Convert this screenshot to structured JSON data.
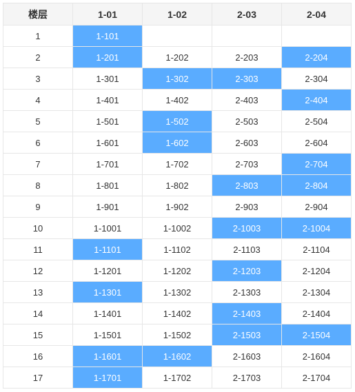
{
  "colors": {
    "highlight": "#5aacff",
    "header_bg": "#f5f5f5",
    "border": "#e6e6e6"
  },
  "table": {
    "headers": [
      "楼层",
      "1-01",
      "1-02",
      "2-03",
      "2-04"
    ],
    "rows": [
      {
        "floor": "1",
        "units": [
          {
            "label": "1-101",
            "hl": true
          },
          {
            "label": "",
            "hl": false
          },
          {
            "label": "",
            "hl": false
          },
          {
            "label": "",
            "hl": false
          }
        ]
      },
      {
        "floor": "2",
        "units": [
          {
            "label": "1-201",
            "hl": true
          },
          {
            "label": "1-202",
            "hl": false
          },
          {
            "label": "2-203",
            "hl": false
          },
          {
            "label": "2-204",
            "hl": true
          }
        ]
      },
      {
        "floor": "3",
        "units": [
          {
            "label": "1-301",
            "hl": false
          },
          {
            "label": "1-302",
            "hl": true
          },
          {
            "label": "2-303",
            "hl": true
          },
          {
            "label": "2-304",
            "hl": false
          }
        ]
      },
      {
        "floor": "4",
        "units": [
          {
            "label": "1-401",
            "hl": false
          },
          {
            "label": "1-402",
            "hl": false
          },
          {
            "label": "2-403",
            "hl": false
          },
          {
            "label": "2-404",
            "hl": true
          }
        ]
      },
      {
        "floor": "5",
        "units": [
          {
            "label": "1-501",
            "hl": false
          },
          {
            "label": "1-502",
            "hl": true
          },
          {
            "label": "2-503",
            "hl": false
          },
          {
            "label": "2-504",
            "hl": false
          }
        ]
      },
      {
        "floor": "6",
        "units": [
          {
            "label": "1-601",
            "hl": false
          },
          {
            "label": "1-602",
            "hl": true
          },
          {
            "label": "2-603",
            "hl": false
          },
          {
            "label": "2-604",
            "hl": false
          }
        ]
      },
      {
        "floor": "7",
        "units": [
          {
            "label": "1-701",
            "hl": false
          },
          {
            "label": "1-702",
            "hl": false
          },
          {
            "label": "2-703",
            "hl": false
          },
          {
            "label": "2-704",
            "hl": true
          }
        ]
      },
      {
        "floor": "8",
        "units": [
          {
            "label": "1-801",
            "hl": false
          },
          {
            "label": "1-802",
            "hl": false
          },
          {
            "label": "2-803",
            "hl": true
          },
          {
            "label": "2-804",
            "hl": true
          }
        ]
      },
      {
        "floor": "9",
        "units": [
          {
            "label": "1-901",
            "hl": false
          },
          {
            "label": "1-902",
            "hl": false
          },
          {
            "label": "2-903",
            "hl": false
          },
          {
            "label": "2-904",
            "hl": false
          }
        ]
      },
      {
        "floor": "10",
        "units": [
          {
            "label": "1-1001",
            "hl": false
          },
          {
            "label": "1-1002",
            "hl": false
          },
          {
            "label": "2-1003",
            "hl": true
          },
          {
            "label": "2-1004",
            "hl": true
          }
        ]
      },
      {
        "floor": "11",
        "units": [
          {
            "label": "1-1101",
            "hl": true
          },
          {
            "label": "1-1102",
            "hl": false
          },
          {
            "label": "2-1103",
            "hl": false
          },
          {
            "label": "2-1104",
            "hl": false
          }
        ]
      },
      {
        "floor": "12",
        "units": [
          {
            "label": "1-1201",
            "hl": false
          },
          {
            "label": "1-1202",
            "hl": false
          },
          {
            "label": "2-1203",
            "hl": true
          },
          {
            "label": "2-1204",
            "hl": false
          }
        ]
      },
      {
        "floor": "13",
        "units": [
          {
            "label": "1-1301",
            "hl": true
          },
          {
            "label": "1-1302",
            "hl": false
          },
          {
            "label": "2-1303",
            "hl": false
          },
          {
            "label": "2-1304",
            "hl": false
          }
        ]
      },
      {
        "floor": "14",
        "units": [
          {
            "label": "1-1401",
            "hl": false
          },
          {
            "label": "1-1402",
            "hl": false
          },
          {
            "label": "2-1403",
            "hl": true
          },
          {
            "label": "2-1404",
            "hl": false
          }
        ]
      },
      {
        "floor": "15",
        "units": [
          {
            "label": "1-1501",
            "hl": false
          },
          {
            "label": "1-1502",
            "hl": false
          },
          {
            "label": "2-1503",
            "hl": true
          },
          {
            "label": "2-1504",
            "hl": true
          }
        ]
      },
      {
        "floor": "16",
        "units": [
          {
            "label": "1-1601",
            "hl": true
          },
          {
            "label": "1-1602",
            "hl": true
          },
          {
            "label": "2-1603",
            "hl": false
          },
          {
            "label": "2-1604",
            "hl": false
          }
        ]
      },
      {
        "floor": "17",
        "units": [
          {
            "label": "1-1701",
            "hl": true
          },
          {
            "label": "1-1702",
            "hl": false
          },
          {
            "label": "2-1703",
            "hl": false
          },
          {
            "label": "2-1704",
            "hl": false
          }
        ]
      }
    ]
  }
}
